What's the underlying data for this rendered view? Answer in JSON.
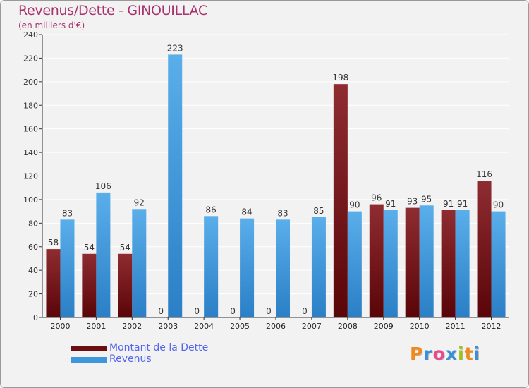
{
  "title": "Revenus/Dette - GINOUILLAC",
  "subtitle": "(en milliers d'€)",
  "colors": {
    "title": "#a8336e",
    "dette": "#7a1f22",
    "revenus": "#3f97db",
    "legend_text": "#5566ee"
  },
  "legend": [
    {
      "label": "Montant de la Dette",
      "color": "#6b0f12"
    },
    {
      "label": "Revenus",
      "color": "#3f97db"
    }
  ],
  "logo": {
    "letters": [
      "P",
      "r",
      "o",
      "x",
      "i",
      "t",
      "i"
    ],
    "colors": [
      "#f08a1c",
      "#3a8fd6",
      "#e84a8a",
      "#3a8fd6",
      "#9ac31c",
      "#f08a1c",
      "#3a8fd6"
    ]
  },
  "chart_data": {
    "type": "bar",
    "categories": [
      "2000",
      "2001",
      "2002",
      "2003",
      "2004",
      "2005",
      "2006",
      "2007",
      "2008",
      "2009",
      "2010",
      "2011",
      "2012"
    ],
    "series": [
      {
        "name": "Montant de la Dette",
        "values": [
          58,
          54,
          54,
          0,
          0,
          0,
          0,
          0,
          198,
          96,
          93,
          91,
          116
        ]
      },
      {
        "name": "Revenus",
        "values": [
          83,
          106,
          92,
          223,
          86,
          84,
          83,
          85,
          90,
          91,
          95,
          91,
          90
        ]
      }
    ],
    "ylim": [
      0,
      240
    ],
    "yticks": [
      0,
      20,
      40,
      60,
      80,
      100,
      120,
      140,
      160,
      180,
      200,
      220,
      240
    ],
    "grid": true,
    "legend_position": "bottom-left"
  }
}
